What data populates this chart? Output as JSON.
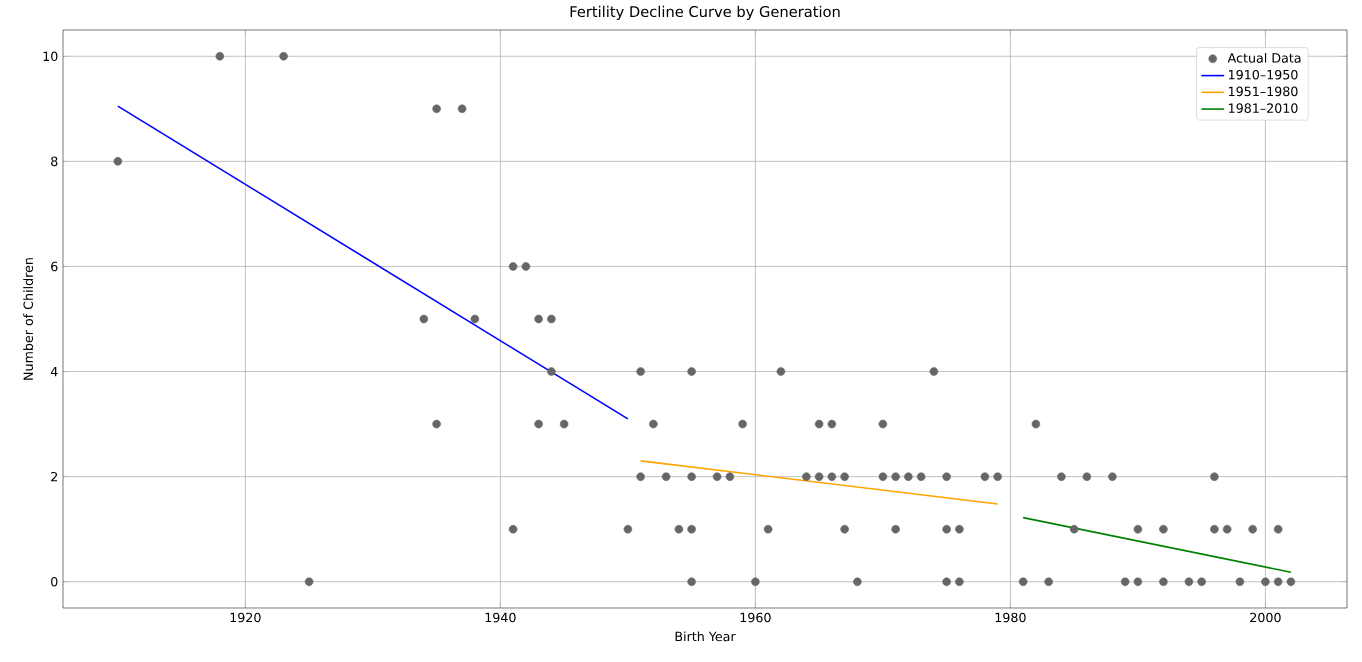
{
  "chart_data": {
    "type": "scatter",
    "title": "Fertility Decline Curve by Generation",
    "xlabel": "Birth Year",
    "ylabel": "Number of Children",
    "xlim": [
      1905.7,
      2006.4
    ],
    "ylim": [
      -0.5,
      10.5
    ],
    "xticks": [
      1920,
      1940,
      1960,
      1980,
      2000
    ],
    "yticks": [
      0,
      2,
      4,
      6,
      8,
      10
    ],
    "grid": true,
    "legend": "top right",
    "series": [
      {
        "name": "Actual Data",
        "marker": "circle",
        "color": "#666666",
        "x": [
          1910,
          1918,
          1923,
          1925,
          1934,
          1935,
          1935,
          1937,
          1938,
          1941,
          1942,
          1941,
          1943,
          1944,
          1943,
          1944,
          1945,
          1950,
          1951,
          1951,
          1952,
          1953,
          1954,
          1955,
          1955,
          1955,
          1955,
          1957,
          1958,
          1959,
          1960,
          1961,
          1962,
          1964,
          1965,
          1965,
          1966,
          1966,
          1967,
          1967,
          1968,
          1970,
          1970,
          1971,
          1971,
          1972,
          1973,
          1974,
          1975,
          1975,
          1975,
          1976,
          1976,
          1978,
          1979,
          1981,
          1982,
          1983,
          1984,
          1985,
          1986,
          1988,
          1989,
          1990,
          1990,
          1992,
          1992,
          1994,
          1995,
          1996,
          1996,
          1997,
          1998,
          1999,
          2000,
          2001,
          2001,
          2002
        ],
        "values": [
          8,
          10,
          10,
          0,
          5,
          9,
          3,
          9,
          5,
          6,
          6,
          1,
          5,
          5,
          3,
          4,
          3,
          1,
          4,
          2,
          3,
          2,
          1,
          4,
          2,
          1,
          0,
          2,
          2,
          3,
          0,
          1,
          4,
          2,
          3,
          2,
          3,
          2,
          2,
          1,
          0,
          3,
          2,
          2,
          1,
          2,
          2,
          4,
          2,
          1,
          0,
          1,
          0,
          2,
          2,
          0,
          3,
          0,
          2,
          1,
          2,
          2,
          0,
          1,
          0,
          1,
          0,
          0,
          0,
          2,
          1,
          1,
          0,
          1,
          0,
          1,
          0,
          0
        ]
      },
      {
        "name": "1910–1950",
        "type": "line",
        "marker": "none",
        "color": "#0000ff",
        "x": [
          1910,
          1950
        ],
        "values": [
          9.05,
          3.1
        ]
      },
      {
        "name": "1951–1980",
        "type": "line",
        "marker": "none",
        "color": "#ffa500",
        "x": [
          1951,
          1979
        ],
        "values": [
          2.3,
          1.48
        ]
      },
      {
        "name": "1981–2010",
        "type": "line",
        "marker": "none",
        "color": "#008000",
        "x": [
          1981,
          2002
        ],
        "values": [
          1.22,
          0.18
        ]
      }
    ]
  }
}
